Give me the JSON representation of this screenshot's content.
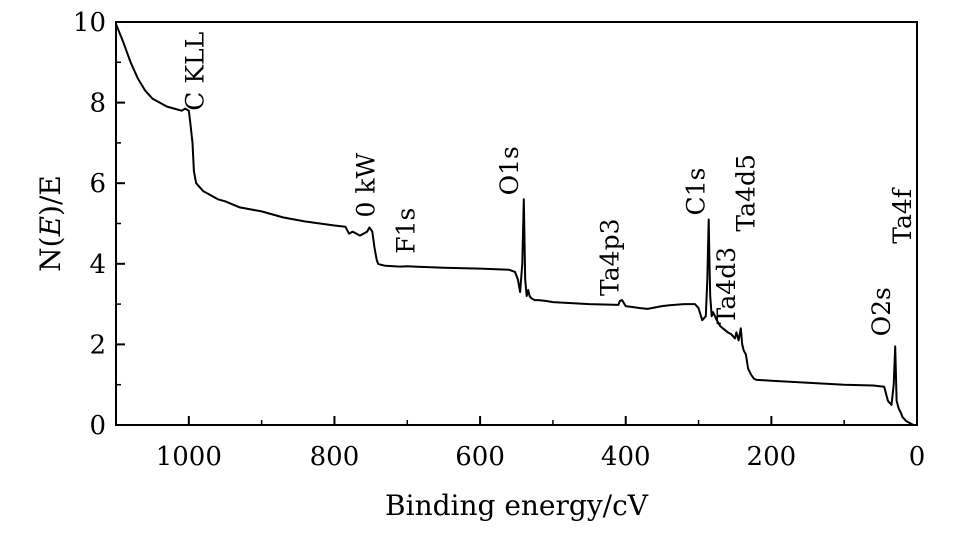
{
  "chart_data": {
    "type": "line",
    "title": "",
    "xlabel": "Binding energy/cV",
    "ylabel_parts": [
      "N(",
      "E",
      ")/E"
    ],
    "xlim": [
      1100,
      0
    ],
    "ylim": [
      0,
      10
    ],
    "x_ticks": [
      1000,
      800,
      600,
      400,
      200,
      0
    ],
    "x_tick_labels": [
      "1000",
      "800",
      "600",
      "400",
      "200",
      "0"
    ],
    "y_ticks": [
      0,
      2,
      4,
      6,
      8,
      10
    ],
    "y_tick_labels": [
      "0",
      "2",
      "4",
      "6",
      "8",
      "10"
    ],
    "grid": false,
    "line_color": "#000000",
    "series": [
      {
        "x": [
          1100,
          1090,
          1080,
          1070,
          1060,
          1050,
          1040,
          1030,
          1020,
          1010,
          1005,
          1000,
          998,
          995,
          993,
          990,
          985,
          980,
          970,
          960,
          950,
          930,
          900,
          870,
          840,
          800,
          785,
          780,
          775,
          765,
          760,
          755,
          752,
          750,
          748,
          745,
          742,
          740,
          735,
          730,
          710,
          700,
          690,
          650,
          600,
          560,
          552,
          548,
          545,
          542,
          540,
          538,
          536,
          534,
          532,
          530,
          525,
          520,
          510,
          500,
          450,
          410,
          408,
          405,
          400,
          380,
          370,
          350,
          340,
          320,
          305,
          300,
          295,
          290,
          288,
          286,
          285,
          284,
          282,
          280,
          275,
          270,
          260,
          255,
          250,
          248,
          245,
          242,
          240,
          238,
          235,
          232,
          228,
          224,
          220,
          200,
          150,
          100,
          60,
          45,
          40,
          35,
          32,
          30,
          28,
          25,
          22,
          20,
          15,
          10,
          5
        ],
        "y": [
          9.95,
          9.5,
          9.0,
          8.6,
          8.3,
          8.1,
          8.0,
          7.9,
          7.85,
          7.8,
          7.85,
          7.8,
          7.5,
          7.0,
          6.3,
          6.0,
          5.9,
          5.8,
          5.7,
          5.6,
          5.55,
          5.4,
          5.3,
          5.15,
          5.05,
          4.95,
          4.92,
          4.75,
          4.8,
          4.7,
          4.75,
          4.8,
          4.9,
          4.85,
          4.8,
          4.4,
          4.1,
          4.0,
          3.97,
          3.95,
          3.93,
          3.94,
          3.93,
          3.9,
          3.88,
          3.85,
          3.8,
          3.6,
          3.3,
          4.0,
          5.6,
          3.6,
          3.2,
          3.35,
          3.2,
          3.15,
          3.1,
          3.1,
          3.08,
          3.05,
          3.0,
          2.98,
          3.08,
          3.1,
          2.95,
          2.9,
          2.88,
          2.95,
          2.97,
          3.0,
          3.0,
          2.9,
          2.6,
          2.7,
          3.6,
          5.1,
          4.0,
          3.2,
          2.7,
          2.8,
          2.6,
          2.45,
          2.3,
          2.25,
          2.15,
          2.3,
          2.1,
          2.4,
          2.0,
          1.85,
          1.75,
          1.4,
          1.25,
          1.15,
          1.12,
          1.1,
          1.05,
          1.0,
          0.98,
          0.95,
          0.6,
          0.5,
          1.0,
          1.95,
          0.6,
          0.4,
          0.3,
          0.2,
          0.1,
          0.05,
          0.0
        ]
      }
    ],
    "annotations": [
      {
        "text": "C KLL",
        "x": 980,
        "y": 7.8
      },
      {
        "text": "0 kW",
        "x": 745,
        "y": 5.15
      },
      {
        "text": "F1s",
        "x": 690,
        "y": 4.25
      },
      {
        "text": "O1s",
        "x": 548,
        "y": 5.7
      },
      {
        "text": "Ta4p3",
        "x": 410,
        "y": 3.2
      },
      {
        "text": "C1s",
        "x": 292,
        "y": 5.2
      },
      {
        "text": "Ta4d3",
        "x": 250,
        "y": 2.5
      },
      {
        "text": "Ta4d5",
        "x": 223,
        "y": 4.8
      },
      {
        "text": "O2s",
        "x": 37,
        "y": 2.2
      },
      {
        "text": "Ta4f",
        "x": 8,
        "y": 4.5
      }
    ]
  }
}
